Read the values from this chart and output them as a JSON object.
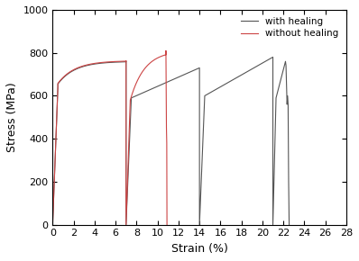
{
  "xlabel": "Strain (%)",
  "ylabel": "Stress (MPa)",
  "xlim": [
    0,
    28
  ],
  "ylim": [
    0,
    1000
  ],
  "xticks": [
    0,
    2,
    4,
    6,
    8,
    10,
    12,
    14,
    16,
    18,
    20,
    22,
    24,
    26,
    28
  ],
  "yticks": [
    0,
    200,
    400,
    600,
    800,
    1000
  ],
  "color_healing": "#555555",
  "color_no_healing": "#cc4444",
  "legend_labels": [
    "with healing",
    "without healing"
  ],
  "figsize": [
    3.98,
    2.9
  ],
  "dpi": 100
}
